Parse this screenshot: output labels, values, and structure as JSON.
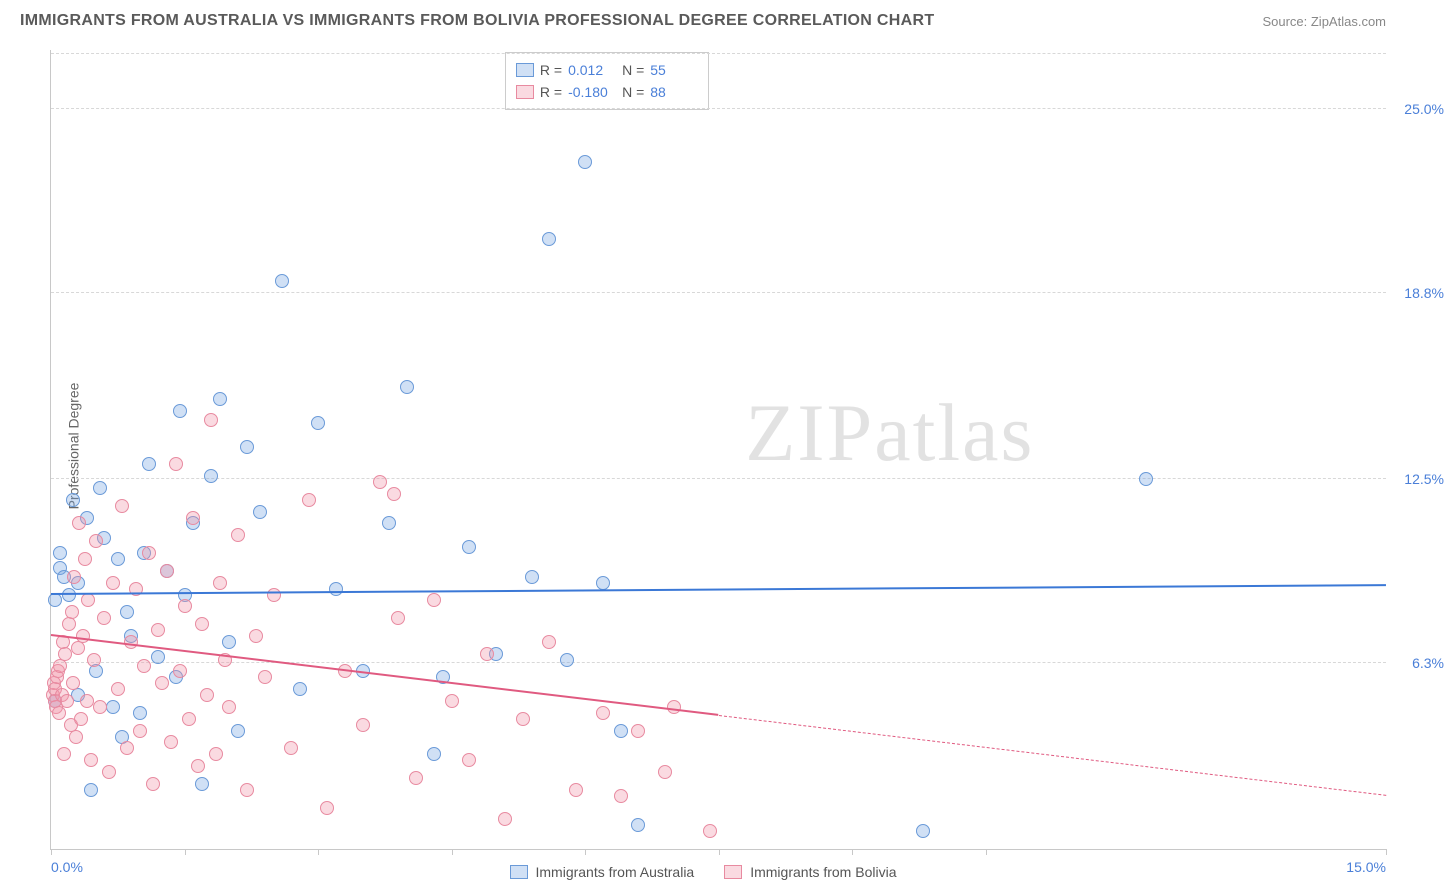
{
  "title": "IMMIGRANTS FROM AUSTRALIA VS IMMIGRANTS FROM BOLIVIA PROFESSIONAL DEGREE CORRELATION CHART",
  "source_label": "Source: ZipAtlas.com",
  "ylabel": "Professional Degree",
  "watermark": "ZIPatlas",
  "chart": {
    "type": "scatter",
    "xlim": [
      0,
      15
    ],
    "ylim": [
      0,
      27
    ],
    "x_ticks": [
      0,
      1.5,
      3,
      4.5,
      6,
      7.5,
      9,
      10.5,
      15
    ],
    "x_tick_labels": {
      "0": "0.0%",
      "15": "15.0%"
    },
    "y_gridlines": [
      6.3,
      12.5,
      18.8,
      25.0
    ],
    "y_grid_labels": [
      "6.3%",
      "12.5%",
      "18.8%",
      "25.0%"
    ],
    "background_color": "#ffffff",
    "grid_color": "#d8d8d8",
    "axis_color": "#c8c8c8",
    "marker_radius": 7,
    "series": [
      {
        "name": "Immigrants from Australia",
        "key": "a",
        "color_fill": "rgba(120,165,225,0.35)",
        "color_stroke": "#6a9ad8",
        "trend_color": "#3b78d6",
        "R": "0.012",
        "N": "55",
        "trend": {
          "x1": 0,
          "y1": 8.6,
          "x2": 15,
          "y2": 8.9,
          "solid_until_x": 15
        },
        "points": [
          [
            0.05,
            5.0
          ],
          [
            0.05,
            8.4
          ],
          [
            0.1,
            9.5
          ],
          [
            0.1,
            10.0
          ],
          [
            0.15,
            9.2
          ],
          [
            0.2,
            8.6
          ],
          [
            0.25,
            11.8
          ],
          [
            0.3,
            5.2
          ],
          [
            0.3,
            9.0
          ],
          [
            0.4,
            11.2
          ],
          [
            0.45,
            2.0
          ],
          [
            0.5,
            6.0
          ],
          [
            0.55,
            12.2
          ],
          [
            0.6,
            10.5
          ],
          [
            0.7,
            4.8
          ],
          [
            0.75,
            9.8
          ],
          [
            0.8,
            3.8
          ],
          [
            0.85,
            8.0
          ],
          [
            0.9,
            7.2
          ],
          [
            1.0,
            4.6
          ],
          [
            1.05,
            10.0
          ],
          [
            1.1,
            13.0
          ],
          [
            1.2,
            6.5
          ],
          [
            1.3,
            9.4
          ],
          [
            1.4,
            5.8
          ],
          [
            1.45,
            14.8
          ],
          [
            1.5,
            8.6
          ],
          [
            1.6,
            11.0
          ],
          [
            1.7,
            2.2
          ],
          [
            1.8,
            12.6
          ],
          [
            1.9,
            15.2
          ],
          [
            2.0,
            7.0
          ],
          [
            2.1,
            4.0
          ],
          [
            2.2,
            13.6
          ],
          [
            2.35,
            11.4
          ],
          [
            2.6,
            19.2
          ],
          [
            2.8,
            5.4
          ],
          [
            3.0,
            14.4
          ],
          [
            3.2,
            8.8
          ],
          [
            3.5,
            6.0
          ],
          [
            3.8,
            11.0
          ],
          [
            4.0,
            15.6
          ],
          [
            4.3,
            3.2
          ],
          [
            4.4,
            5.8
          ],
          [
            4.7,
            10.2
          ],
          [
            5.0,
            6.6
          ],
          [
            5.4,
            9.2
          ],
          [
            5.6,
            20.6
          ],
          [
            5.8,
            6.4
          ],
          [
            6.0,
            23.2
          ],
          [
            6.2,
            9.0
          ],
          [
            6.4,
            4.0
          ],
          [
            6.6,
            0.8
          ],
          [
            9.8,
            0.6
          ],
          [
            12.3,
            12.5
          ]
        ]
      },
      {
        "name": "Immigrants from Bolivia",
        "key": "b",
        "color_fill": "rgba(240,150,170,0.35)",
        "color_stroke": "#e88aa0",
        "trend_color": "#e05a80",
        "R": "-0.180",
        "N": "88",
        "trend": {
          "x1": 0,
          "y1": 7.2,
          "x2": 15,
          "y2": 1.8,
          "solid_until_x": 7.5
        },
        "points": [
          [
            0.02,
            5.2
          ],
          [
            0.03,
            5.6
          ],
          [
            0.04,
            5.0
          ],
          [
            0.05,
            5.4
          ],
          [
            0.06,
            4.8
          ],
          [
            0.07,
            5.8
          ],
          [
            0.08,
            6.0
          ],
          [
            0.09,
            4.6
          ],
          [
            0.1,
            6.2
          ],
          [
            0.12,
            5.2
          ],
          [
            0.14,
            7.0
          ],
          [
            0.15,
            3.2
          ],
          [
            0.16,
            6.6
          ],
          [
            0.18,
            5.0
          ],
          [
            0.2,
            7.6
          ],
          [
            0.22,
            4.2
          ],
          [
            0.24,
            8.0
          ],
          [
            0.25,
            5.6
          ],
          [
            0.26,
            9.2
          ],
          [
            0.28,
            3.8
          ],
          [
            0.3,
            6.8
          ],
          [
            0.32,
            11.0
          ],
          [
            0.34,
            4.4
          ],
          [
            0.36,
            7.2
          ],
          [
            0.38,
            9.8
          ],
          [
            0.4,
            5.0
          ],
          [
            0.42,
            8.4
          ],
          [
            0.45,
            3.0
          ],
          [
            0.48,
            6.4
          ],
          [
            0.5,
            10.4
          ],
          [
            0.55,
            4.8
          ],
          [
            0.6,
            7.8
          ],
          [
            0.65,
            2.6
          ],
          [
            0.7,
            9.0
          ],
          [
            0.75,
            5.4
          ],
          [
            0.8,
            11.6
          ],
          [
            0.85,
            3.4
          ],
          [
            0.9,
            7.0
          ],
          [
            0.95,
            8.8
          ],
          [
            1.0,
            4.0
          ],
          [
            1.05,
            6.2
          ],
          [
            1.1,
            10.0
          ],
          [
            1.15,
            2.2
          ],
          [
            1.2,
            7.4
          ],
          [
            1.25,
            5.6
          ],
          [
            1.3,
            9.4
          ],
          [
            1.35,
            3.6
          ],
          [
            1.4,
            13.0
          ],
          [
            1.45,
            6.0
          ],
          [
            1.5,
            8.2
          ],
          [
            1.55,
            4.4
          ],
          [
            1.6,
            11.2
          ],
          [
            1.65,
            2.8
          ],
          [
            1.7,
            7.6
          ],
          [
            1.75,
            5.2
          ],
          [
            1.8,
            14.5
          ],
          [
            1.85,
            3.2
          ],
          [
            1.9,
            9.0
          ],
          [
            1.95,
            6.4
          ],
          [
            2.0,
            4.8
          ],
          [
            2.1,
            10.6
          ],
          [
            2.2,
            2.0
          ],
          [
            2.3,
            7.2
          ],
          [
            2.4,
            5.8
          ],
          [
            2.5,
            8.6
          ],
          [
            2.7,
            3.4
          ],
          [
            2.9,
            11.8
          ],
          [
            3.1,
            1.4
          ],
          [
            3.3,
            6.0
          ],
          [
            3.5,
            4.2
          ],
          [
            3.7,
            12.4
          ],
          [
            3.85,
            12.0
          ],
          [
            3.9,
            7.8
          ],
          [
            4.1,
            2.4
          ],
          [
            4.3,
            8.4
          ],
          [
            4.5,
            5.0
          ],
          [
            4.7,
            3.0
          ],
          [
            4.9,
            6.6
          ],
          [
            5.1,
            1.0
          ],
          [
            5.3,
            4.4
          ],
          [
            5.6,
            7.0
          ],
          [
            5.9,
            2.0
          ],
          [
            6.2,
            4.6
          ],
          [
            6.4,
            1.8
          ],
          [
            6.6,
            4.0
          ],
          [
            6.9,
            2.6
          ],
          [
            7.0,
            4.8
          ],
          [
            7.4,
            0.6
          ]
        ]
      }
    ]
  },
  "legend_stats": {
    "r_label": "R =",
    "n_label": "N ="
  },
  "bottom_legend": [
    {
      "swatch": "a",
      "label": "Immigrants from Australia"
    },
    {
      "swatch": "b",
      "label": "Immigrants from Bolivia"
    }
  ]
}
